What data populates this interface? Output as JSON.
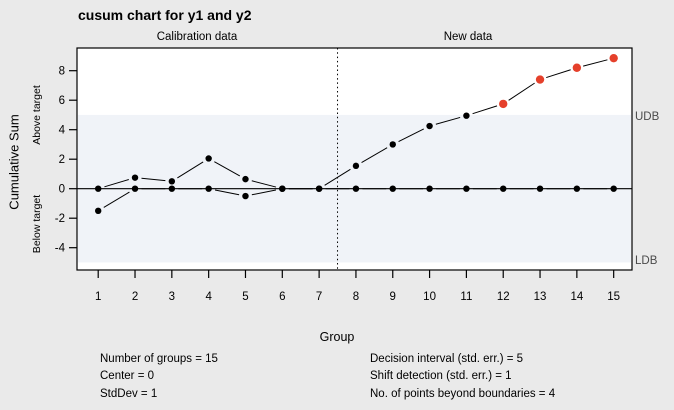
{
  "title": "cusum chart for y1 and y2",
  "region_labels": {
    "calibration": "Calibration data",
    "new_data": "New data"
  },
  "axis_labels": {
    "x": "Group",
    "y": "Cumulative Sum",
    "y_above": "Above target",
    "y_below": "Below target"
  },
  "boundary_labels": {
    "upper": "UDB",
    "lower": "LDB"
  },
  "stats": {
    "left": [
      "Number of groups = 15",
      "Center = 0",
      "StdDev = 1"
    ],
    "right": [
      "Decision interval (std. err.) = 5",
      "Shift detection (std. err.) = 1",
      "No. of points beyond boundaries = 4"
    ]
  },
  "chart_data": {
    "type": "line",
    "title": "cusum chart for y1 and y2",
    "xlabel": "Group",
    "ylabel": "Cumulative Sum",
    "x": [
      1,
      2,
      3,
      4,
      5,
      6,
      7,
      8,
      9,
      10,
      11,
      12,
      13,
      14,
      15
    ],
    "x_ticks": [
      1,
      2,
      3,
      4,
      5,
      6,
      7,
      8,
      9,
      10,
      11,
      12,
      13,
      14,
      15
    ],
    "y_ticks": [
      -4,
      -2,
      0,
      2,
      4,
      6,
      8
    ],
    "ylim": [
      -5.5,
      9.6
    ],
    "series": [
      {
        "name": "Cumulative sum above target",
        "values": [
          0,
          0.75,
          0.5,
          2.05,
          0.65,
          0,
          0,
          1.55,
          3.0,
          4.25,
          4.95,
          5.75,
          7.4,
          8.2,
          8.85
        ]
      },
      {
        "name": "Cumulative sum below target",
        "values": [
          -1.5,
          0,
          0,
          0,
          -0.5,
          0,
          0,
          0,
          0,
          0,
          0,
          0,
          0,
          0,
          0
        ]
      }
    ],
    "decision_interval": 5,
    "separator_x": 7.5,
    "beyond_boundary_groups": [
      12,
      13,
      14,
      15
    ],
    "regions": {
      "calibration": "Calibration data",
      "new_data": "New data"
    },
    "boundary_labels": {
      "upper": "UDB",
      "lower": "LDB"
    },
    "legend_position": "none",
    "grid": false,
    "colors": {
      "band": "#f0f3f8",
      "point": "#000000",
      "beyond_point": "#e5402b",
      "line": "#000000",
      "center_line": "#000000",
      "background": "#eaeaea",
      "plot_background": "#ffffff"
    }
  }
}
